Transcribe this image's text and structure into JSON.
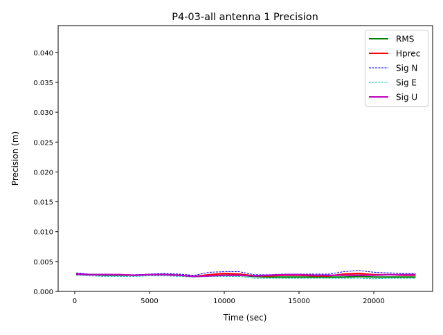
{
  "chart_data": {
    "type": "line",
    "title": "P4-03-all antenna 1 Precision",
    "xlabel": "Time (sec)",
    "ylabel": "Precision (m)",
    "xlim": [
      -1111,
      23935
    ],
    "ylim": [
      0,
      0.0445
    ],
    "xticks": [
      0,
      5000,
      10000,
      15000,
      20000
    ],
    "xtick_labels": [
      "0",
      "5000",
      "10000",
      "15000",
      "20000"
    ],
    "yticks": [
      0,
      0.005,
      0.01,
      0.015,
      0.02,
      0.025,
      0.03,
      0.035,
      0.04
    ],
    "ytick_labels": [
      "0.000",
      "0.005",
      "0.010",
      "0.015",
      "0.020",
      "0.025",
      "0.030",
      "0.035",
      "0.040"
    ],
    "grid": false,
    "legend_position": "top-right",
    "x": [
      100,
      1000,
      2000,
      3000,
      4000,
      5000,
      6000,
      7000,
      8000,
      9000,
      10000,
      11000,
      12000,
      13000,
      14000,
      15000,
      16000,
      17000,
      18000,
      19000,
      20000,
      21000,
      22000,
      22800
    ],
    "series": [
      {
        "name": "RMS",
        "color": "#008000",
        "style": "solid",
        "values": [
          0.0029,
          0.0028,
          0.0027,
          0.0027,
          0.0027,
          0.0028,
          0.0028,
          0.0027,
          0.0025,
          0.0026,
          0.0027,
          0.0027,
          0.0025,
          0.0024,
          0.0024,
          0.0024,
          0.0024,
          0.0024,
          0.0024,
          0.0025,
          0.0024,
          0.0024,
          0.0024,
          0.0024
        ]
      },
      {
        "name": "Hprec",
        "color": "#ff0000",
        "style": "solid",
        "values": [
          0.0029,
          0.0028,
          0.0028,
          0.0028,
          0.0027,
          0.0028,
          0.0028,
          0.0027,
          0.0025,
          0.0028,
          0.003,
          0.0029,
          0.0026,
          0.0026,
          0.0027,
          0.0027,
          0.0026,
          0.0026,
          0.0029,
          0.003,
          0.0028,
          0.0028,
          0.0027,
          0.0027
        ]
      },
      {
        "name": "Sig N",
        "color": "#0000ff",
        "style": "dashed",
        "values": [
          0.0031,
          0.0029,
          0.0029,
          0.0028,
          0.0028,
          0.0029,
          0.003,
          0.0029,
          0.0027,
          0.0032,
          0.0033,
          0.0033,
          0.0028,
          0.0028,
          0.0029,
          0.0029,
          0.0029,
          0.0029,
          0.0033,
          0.0035,
          0.0032,
          0.0031,
          0.003,
          0.003
        ]
      },
      {
        "name": "Sig E",
        "color": "#00bfbf",
        "style": "dashed",
        "values": [
          0.0027,
          0.0026,
          0.0025,
          0.0025,
          0.0025,
          0.0026,
          0.0026,
          0.0025,
          0.0024,
          0.0025,
          0.0025,
          0.0025,
          0.0022,
          0.0022,
          0.0022,
          0.0022,
          0.0022,
          0.0022,
          0.0022,
          0.0022,
          0.0021,
          0.0022,
          0.0022,
          0.0022
        ]
      },
      {
        "name": "Sig U",
        "color": "#bf00bf",
        "style": "solid",
        "values": [
          0.0029,
          0.0028,
          0.0028,
          0.0028,
          0.0027,
          0.0028,
          0.0028,
          0.0027,
          0.0025,
          0.0026,
          0.0027,
          0.0027,
          0.0026,
          0.0027,
          0.0028,
          0.0028,
          0.0027,
          0.0027,
          0.0027,
          0.0027,
          0.0027,
          0.0028,
          0.0028,
          0.0028
        ]
      }
    ]
  }
}
